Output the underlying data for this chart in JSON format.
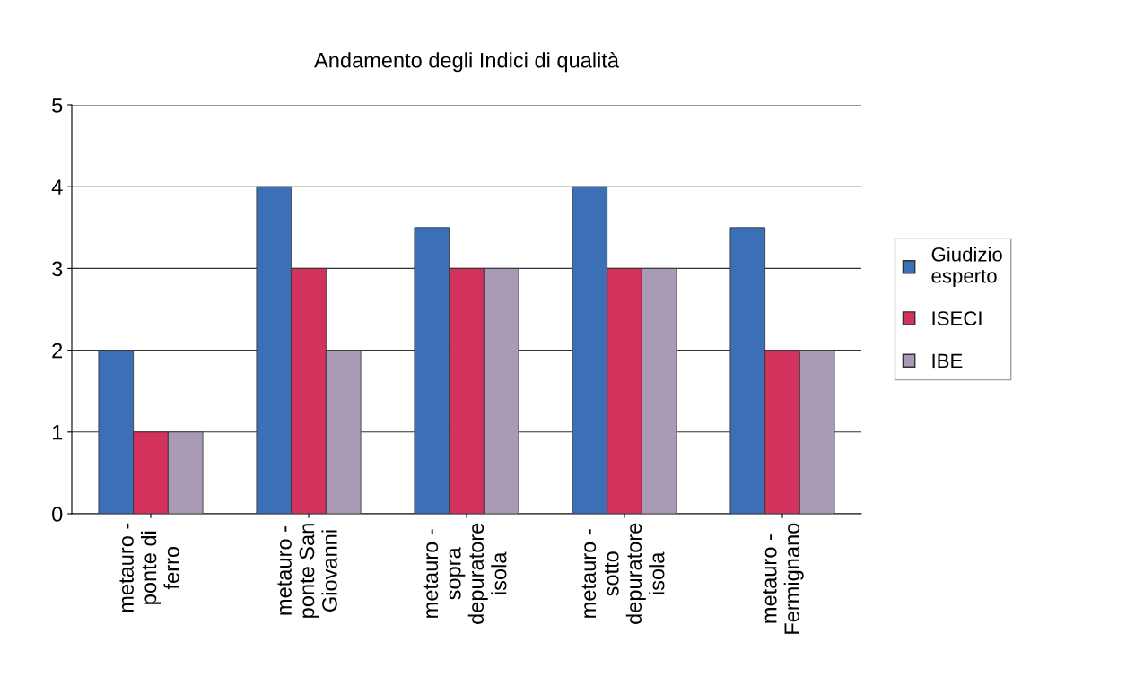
{
  "chart_data": {
    "type": "bar",
    "title": "Andamento degli Indici di qualità",
    "categories": [
      "metauro - ponte di ferro",
      "metauro - ponte San Giovanni",
      "metauro - sopra depuratore isola",
      "metauro - sotto depuratore isola",
      "metauro - Fermignano"
    ],
    "series": [
      {
        "name": "Giudizio esperto",
        "color": "#3b6fb6",
        "values": [
          2,
          4,
          3.5,
          4,
          3.5
        ]
      },
      {
        "name": "ISECI",
        "color": "#d2325c",
        "values": [
          1,
          3,
          3,
          3,
          2
        ]
      },
      {
        "name": "IBE",
        "color": "#a99bb6",
        "values": [
          1,
          2,
          3,
          3,
          2
        ]
      }
    ],
    "ylim": [
      0,
      5
    ],
    "yticks": [
      0,
      1,
      2,
      3,
      4,
      5
    ],
    "grid": "y",
    "legend": "right"
  }
}
